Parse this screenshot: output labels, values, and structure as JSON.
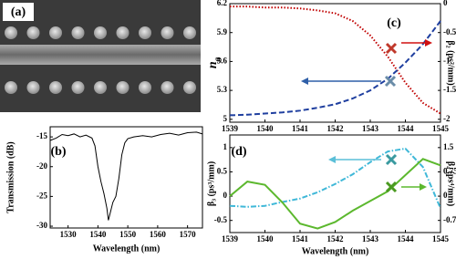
{
  "image": {
    "label": "(a)"
  },
  "chart_data": [
    {
      "type": "line",
      "label": "(b)",
      "xlabel": "Wavelength (nm)",
      "ylabel": "Transmission (dB)",
      "x": [
        1524,
        1526,
        1528,
        1530,
        1532,
        1534,
        1536,
        1538,
        1539,
        1540,
        1541,
        1542,
        1543,
        1543.5,
        1544,
        1545,
        1546,
        1547,
        1548,
        1549,
        1550,
        1552,
        1555,
        1558,
        1561,
        1564,
        1567,
        1570,
        1573,
        1575
      ],
      "series": [
        {
          "color": "#000000",
          "linestyle": "solid",
          "values": [
            -15.6,
            -15.2,
            -14.6,
            -14.8,
            -14.5,
            -15,
            -14.7,
            -15.2,
            -16.5,
            -20,
            -22.5,
            -24.5,
            -27,
            -29,
            -28,
            -26,
            -25,
            -22,
            -18,
            -16,
            -15.3,
            -15,
            -14.8,
            -15,
            -14.6,
            -14.4,
            -14.7,
            -14.3,
            -14.2,
            -14.5
          ]
        }
      ],
      "xlim": [
        1524,
        1575
      ],
      "xticks": [
        1530,
        1540,
        1550,
        1560,
        1570
      ],
      "ylim": [
        -30.3,
        -13.3
      ],
      "yticks": [
        -15,
        -20,
        -25,
        -30
      ]
    },
    {
      "type": "line",
      "label": "(c)",
      "ylabel": [
        "n",
        "g"
      ],
      "y2label": "β₂ (ps²/mm)",
      "x": [
        1539,
        1539.5,
        1540,
        1540.5,
        1541,
        1541.5,
        1542,
        1542.5,
        1543,
        1543.5,
        1544,
        1544.5,
        1545
      ],
      "series": [
        {
          "color": "#c00000",
          "linestyle": "dotted",
          "values": [
            6.17,
            6.17,
            6.16,
            6.16,
            6.15,
            6.13,
            6.1,
            6.02,
            5.87,
            5.65,
            5.38,
            5.17,
            5.06
          ]
        },
        {
          "color": "#1f3f9f",
          "linestyle": "dashed",
          "axis": "y2",
          "values": [
            -1.93,
            -1.92,
            -1.9,
            -1.88,
            -1.85,
            -1.8,
            -1.74,
            -1.64,
            -1.5,
            -1.3,
            -1.02,
            -0.7,
            -0.3
          ]
        }
      ],
      "xlim": [
        1539,
        1545
      ],
      "xticks": [
        1539,
        1540,
        1541,
        1542,
        1543,
        1544,
        1545
      ],
      "ylim": [
        4.97,
        6.2
      ],
      "yticks": [
        6.2,
        5.9,
        5.6,
        5.3,
        5
      ],
      "y2lim": [
        -2.05,
        0
      ],
      "y2ticks": [
        0,
        -0.5,
        -1,
        -1.5,
        -2
      ]
    },
    {
      "type": "line",
      "label": "(d)",
      "xlabel": "Wavelength (nm)",
      "ylabel": "β₃ (ps³/mm)",
      "y2label": "β₄ (ps⁴/mm)",
      "x": [
        1539,
        1539.5,
        1540,
        1540.5,
        1541,
        1541.5,
        1542,
        1542.5,
        1543,
        1543.5,
        1544,
        1544.5,
        1545
      ],
      "series": [
        {
          "color": "#3fb8d8",
          "linestyle": "dashdot",
          "values": [
            -0.2,
            -0.22,
            -0.2,
            -0.12,
            -0.05,
            0.08,
            0.25,
            0.45,
            0.7,
            0.92,
            0.98,
            0.6,
            -0.25
          ]
        },
        {
          "color": "#5cb82e",
          "linestyle": "solid",
          "axis": "y2",
          "values": [
            0,
            0.45,
            0.35,
            -0.2,
            -0.85,
            -1,
            -0.8,
            -0.45,
            -0.15,
            0.15,
            0.65,
            1.15,
            0.95
          ]
        }
      ],
      "xlim": [
        1539,
        1545
      ],
      "xticks": [
        1539,
        1540,
        1541,
        1542,
        1543,
        1544,
        1545
      ],
      "ylim": [
        -0.75,
        1.26
      ],
      "yticks": [
        1,
        0.5,
        0,
        -0.5
      ],
      "y2lim": [
        -1.125,
        1.89
      ],
      "y2ticks": [
        1.5,
        0.75,
        0,
        -0.75
      ]
    }
  ]
}
